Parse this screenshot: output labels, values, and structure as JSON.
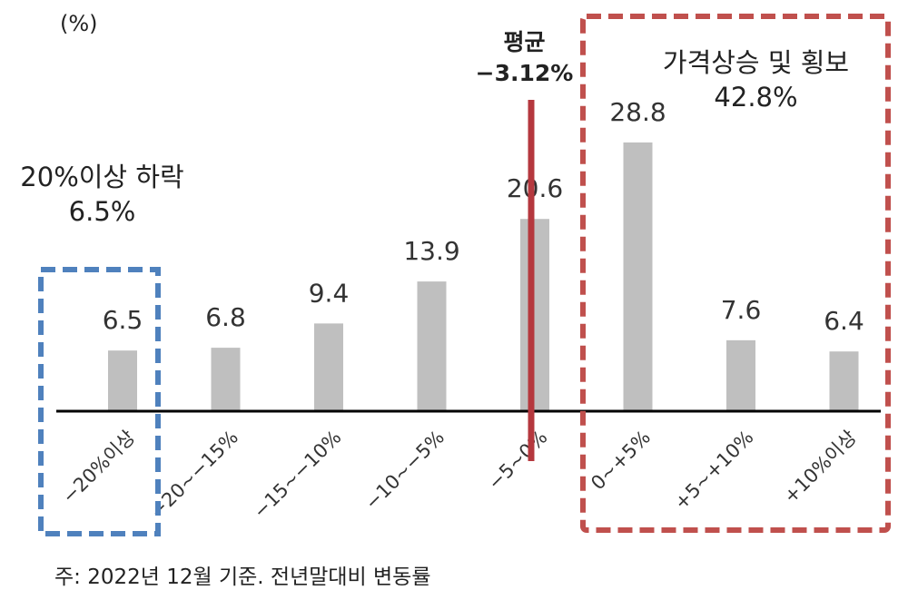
{
  "unit_label": "(%)",
  "footnote": "주: 2022년 12월 기준. 전년말대비 변동률",
  "annotations": {
    "fall": {
      "line1": "20%이상 하락",
      "line2": "6.5%"
    },
    "rise": {
      "line1": "가격상승 및 횡보",
      "line2": "42.8%"
    },
    "average": {
      "line1": "평균",
      "line2": "−3.12%"
    }
  },
  "colors": {
    "bar": "#bfbfbf",
    "average_line": "#b5383e",
    "fall_box": "#4f81bd",
    "rise_box": "#c0504d",
    "axis": "#000000"
  },
  "chart_data": {
    "type": "bar",
    "title": "",
    "xlabel": "",
    "ylabel": "(%)",
    "categories": [
      "−20%이상",
      "−20~−15%",
      "−15~−10%",
      "−10~−5%",
      "−5~0%",
      "0~+5%",
      "+5~+10%",
      "+10%이상"
    ],
    "values": [
      6.5,
      6.8,
      9.4,
      13.9,
      20.6,
      28.8,
      7.6,
      6.4
    ],
    "ylim": [
      0,
      35
    ],
    "grid": false,
    "legend": "none",
    "average": -3.12
  }
}
